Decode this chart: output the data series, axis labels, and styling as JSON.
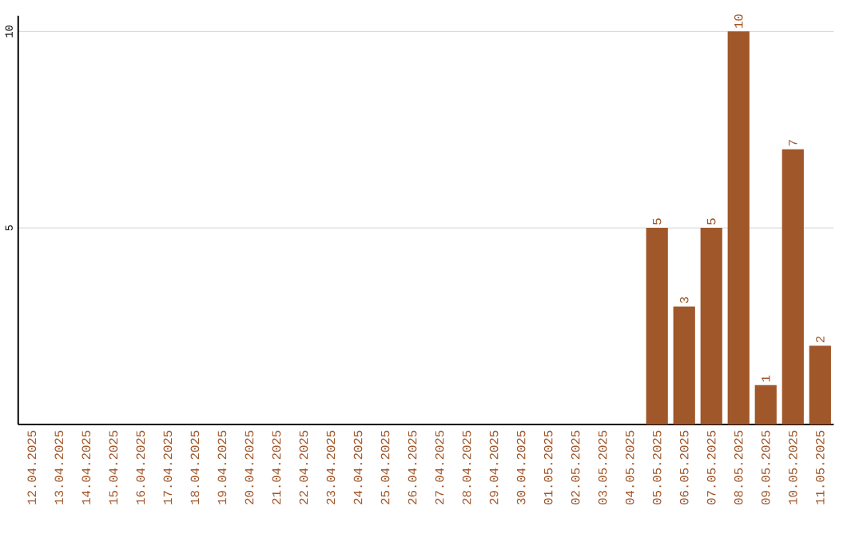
{
  "chart_data": {
    "type": "bar",
    "categories": [
      "12.04.2025",
      "13.04.2025",
      "14.04.2025",
      "15.04.2025",
      "16.04.2025",
      "17.04.2025",
      "18.04.2025",
      "19.04.2025",
      "20.04.2025",
      "21.04.2025",
      "22.04.2025",
      "23.04.2025",
      "24.04.2025",
      "25.04.2025",
      "26.04.2025",
      "27.04.2025",
      "28.04.2025",
      "29.04.2025",
      "30.04.2025",
      "01.05.2025",
      "02.05.2025",
      "03.05.2025",
      "04.05.2025",
      "05.05.2025",
      "06.05.2025",
      "07.05.2025",
      "08.05.2025",
      "09.05.2025",
      "10.05.2025",
      "11.05.2025"
    ],
    "values": [
      0,
      0,
      0,
      0,
      0,
      0,
      0,
      0,
      0,
      0,
      0,
      0,
      0,
      0,
      0,
      0,
      0,
      0,
      0,
      0,
      0,
      0,
      0,
      5,
      3,
      5,
      10,
      1,
      7,
      2
    ],
    "value_labels": [
      null,
      null,
      null,
      null,
      null,
      null,
      null,
      null,
      null,
      null,
      null,
      null,
      null,
      null,
      null,
      null,
      null,
      null,
      null,
      null,
      null,
      null,
      null,
      "5",
      "3",
      "5",
      "10",
      "1",
      "7",
      "2"
    ],
    "color": "#a0572a",
    "ylim": [
      0,
      10.4
    ],
    "yticks": [
      5,
      10
    ],
    "grid": "y"
  }
}
